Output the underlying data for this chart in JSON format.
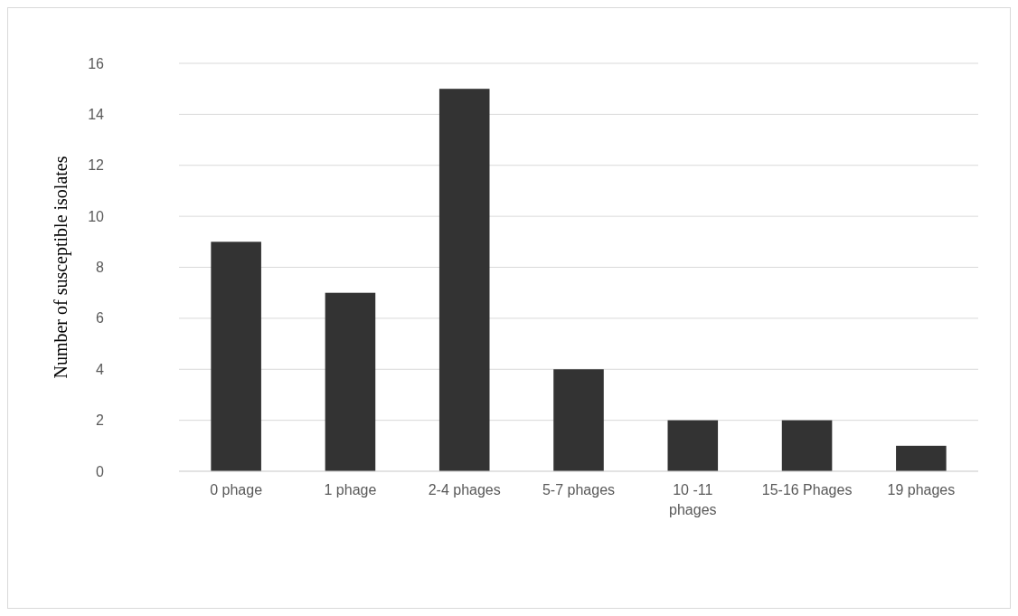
{
  "chart_data": {
    "type": "bar",
    "ylabel": "Number of  susceptible isolates",
    "categories": [
      "0 phage",
      "1 phage",
      "2-4 phages",
      "5-7 phages",
      "10 -11 phages",
      "15-16 Phages",
      "19 phages"
    ],
    "values": [
      9,
      7,
      15,
      4,
      2,
      2,
      1
    ],
    "color": "#333333",
    "ylim": [
      0,
      16
    ],
    "yticks": [
      0,
      2,
      4,
      6,
      8,
      10,
      12,
      14,
      16
    ],
    "grid": "y"
  }
}
